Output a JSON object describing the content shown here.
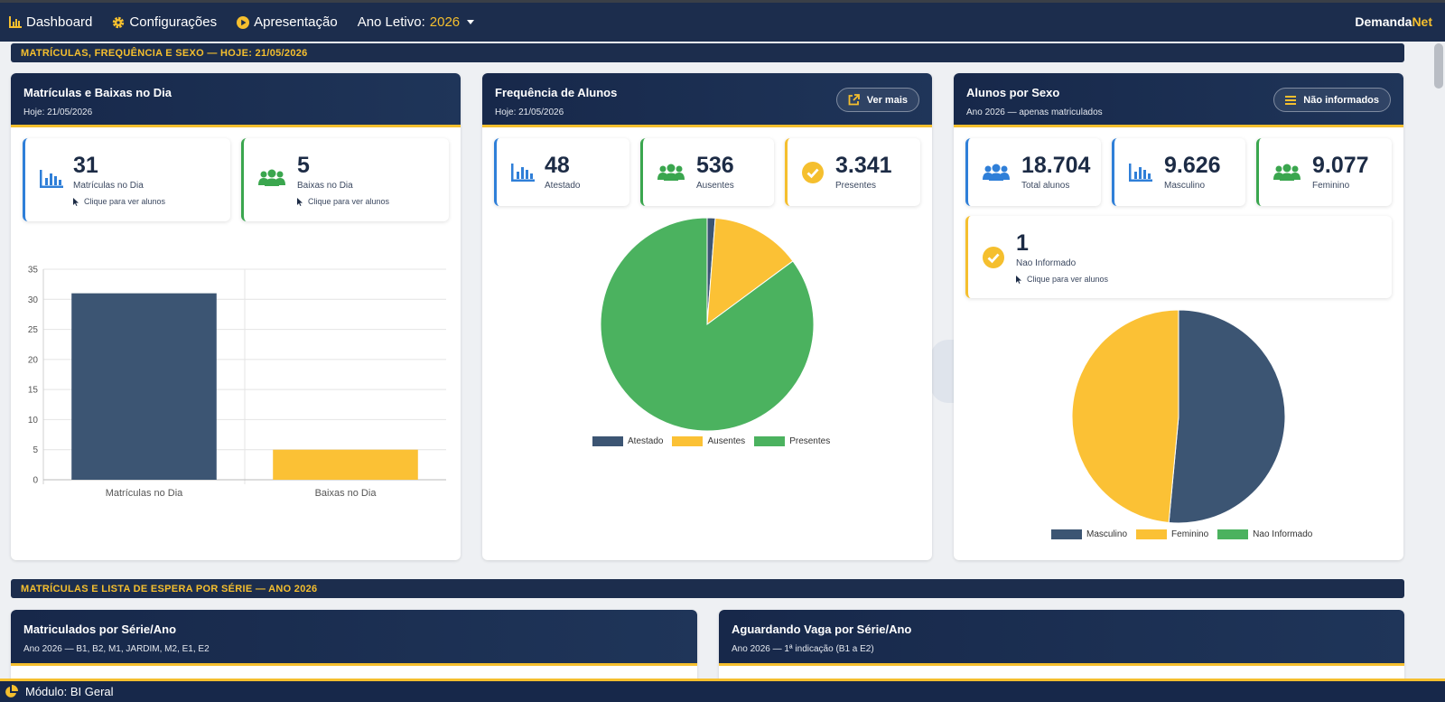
{
  "nav": {
    "dashboard": "Dashboard",
    "config": "Configurações",
    "presentation": "Apresentação",
    "year_label": "Ano Letivo:",
    "year_value": "2026",
    "brand_a": "Demanda",
    "brand_b": "Net"
  },
  "section1": "MATRÍCULAS, FREQUÊNCIA E SEXO — HOJE: 21/05/2026",
  "section2": "MATRÍCULAS E LISTA DE ESPERA POR SÉRIE — ANO 2026",
  "card1": {
    "title": "Matrículas e Baixas no Dia",
    "sub": "Hoje: 21/05/2026",
    "stats": [
      {
        "value": "31",
        "label": "Matrículas no Dia",
        "hint": "Clique para ver alunos"
      },
      {
        "value": "5",
        "label": "Baixas no Dia",
        "hint": "Clique para ver alunos"
      }
    ]
  },
  "card2": {
    "title": "Frequência de Alunos",
    "sub": "Hoje: 21/05/2026",
    "button": "Ver mais",
    "stats": [
      {
        "value": "48",
        "label": "Atestado"
      },
      {
        "value": "536",
        "label": "Ausentes"
      },
      {
        "value": "3.341",
        "label": "Presentes"
      }
    ]
  },
  "card3": {
    "title": "Alunos por Sexo",
    "sub": "Ano 2026 — apenas matriculados",
    "button": "Não informados",
    "stats": [
      {
        "value": "18.704",
        "label": "Total alunos"
      },
      {
        "value": "9.626",
        "label": "Masculino"
      },
      {
        "value": "9.077",
        "label": "Feminino"
      }
    ],
    "extra": {
      "value": "1",
      "label": "Nao Informado",
      "hint": "Clique para ver alunos"
    }
  },
  "card4": {
    "title": "Matriculados por Série/Ano",
    "sub": "Ano 2026 — B1, B2, M1, JARDIM, M2, E1, E2"
  },
  "card5": {
    "title": "Aguardando Vaga por Série/Ano",
    "sub": "Ano 2026 — 1ª indicação (B1 a E2)"
  },
  "footer": {
    "module": "Módulo: BI Geral"
  },
  "colors": {
    "navy": "#3c5573",
    "yellow": "#fbc135",
    "green": "#4bb25f",
    "accent": "#f5bf2e"
  },
  "chart_data": [
    {
      "type": "bar",
      "categories": [
        "Matrículas no Dia",
        "Baixas no Dia"
      ],
      "values": [
        31,
        5
      ],
      "colors": [
        "#3c5573",
        "#fbc135"
      ],
      "ylim": [
        0,
        35
      ],
      "yticks": [
        0,
        5,
        10,
        15,
        20,
        25,
        30,
        35
      ],
      "grid": true
    },
    {
      "type": "pie",
      "labels": [
        "Atestado",
        "Ausentes",
        "Presentes"
      ],
      "values": [
        48,
        536,
        3341
      ],
      "colors": [
        "#3c5573",
        "#fbc135",
        "#4bb25f"
      ],
      "legend": "bottom"
    },
    {
      "type": "pie",
      "labels": [
        "Masculino",
        "Feminino",
        "Nao Informado"
      ],
      "values": [
        9626,
        9077,
        1
      ],
      "colors": [
        "#3c5573",
        "#fbc135",
        "#4bb25f"
      ],
      "legend": "bottom"
    }
  ]
}
